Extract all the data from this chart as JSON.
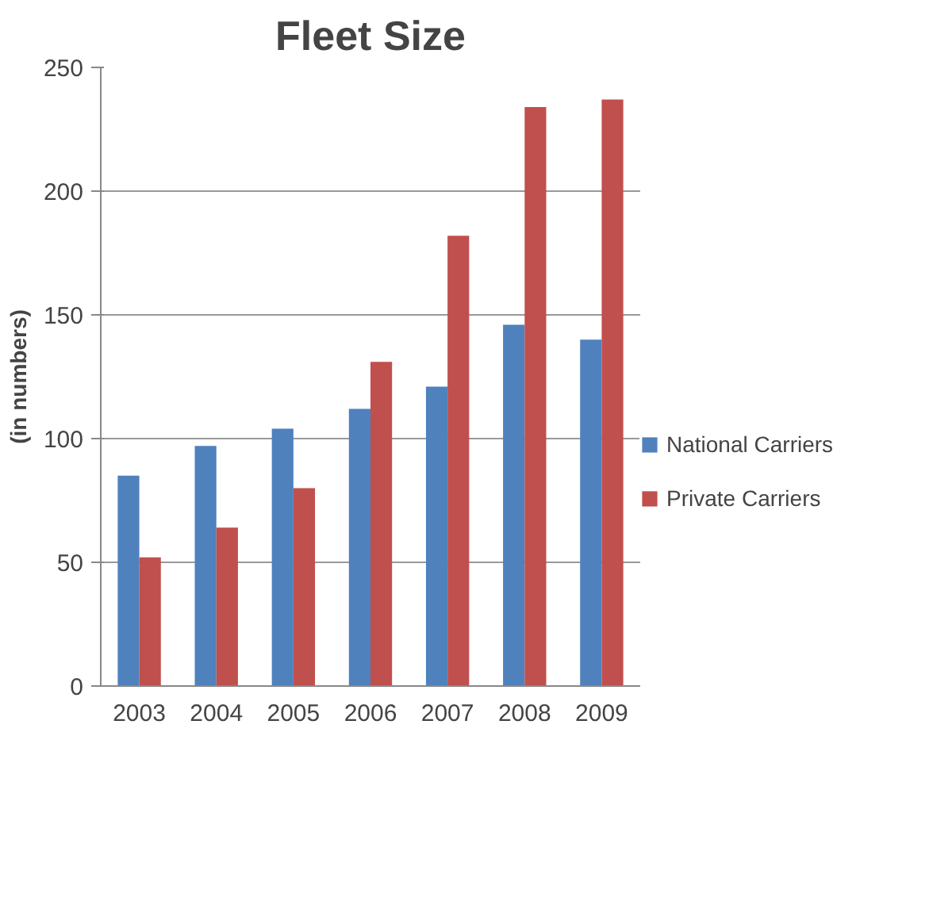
{
  "chart_data": {
    "type": "bar",
    "title": "Fleet Size",
    "ylabel": "(in numbers)",
    "categories": [
      "2003",
      "2004",
      "2005",
      "2006",
      "2007",
      "2008",
      "2009"
    ],
    "series": [
      {
        "name": "National Carriers",
        "color": "#4f81bd",
        "values": [
          85,
          97,
          104,
          112,
          121,
          146,
          140
        ]
      },
      {
        "name": "Private Carriers",
        "color": "#c0504d",
        "values": [
          52,
          64,
          80,
          131,
          182,
          234,
          237
        ]
      }
    ],
    "ylim": [
      0,
      250
    ],
    "yticks": [
      0,
      50,
      100,
      150,
      200,
      250
    ],
    "grid": "y",
    "legend": "right"
  }
}
